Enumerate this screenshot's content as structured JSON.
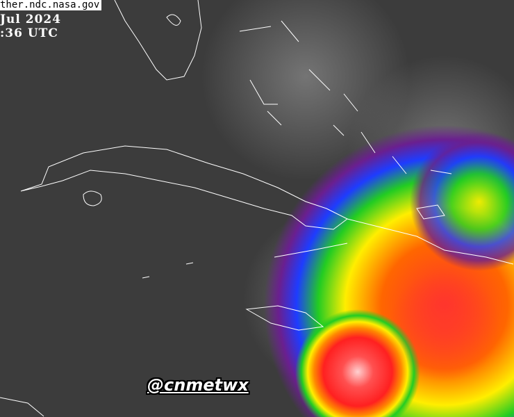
{
  "image": {
    "source_label": "ther.ndc.nasa.gov",
    "date_label": "Jul 2024",
    "time_label": ":36 UTC",
    "watermark": "@cnmetwx",
    "colors": {
      "background": "#3c3c3c",
      "coastline": "#ffffff",
      "storm_core": "#ff3030",
      "storm_mid": "#ffee00",
      "storm_outer": "#22cc22",
      "storm_edge": "#2233ff",
      "storm_fringe": "#6a1f8f"
    }
  }
}
